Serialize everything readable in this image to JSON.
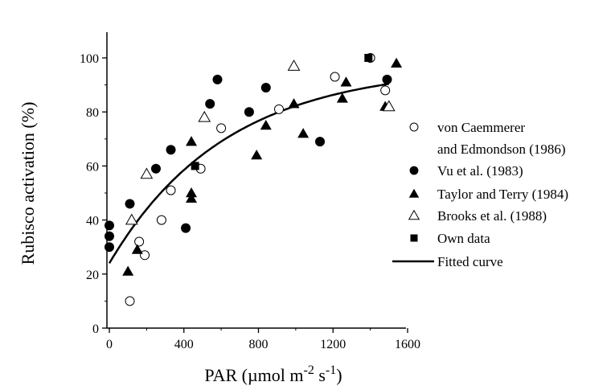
{
  "chart_data": {
    "type": "scatter",
    "xlabel": "PAR (µmol m-2 s-1)",
    "xlabel_parts": {
      "base": "PAR (µmol m",
      "exp1": "-2",
      "mid": " s",
      "exp2": "-1",
      "end": ")"
    },
    "ylabel": "Rubisco activation (%)",
    "xlim": [
      0,
      1600
    ],
    "ylim": [
      0,
      100
    ],
    "x_ticks": [
      "0",
      "400",
      "800",
      "1200",
      "1600"
    ],
    "y_ticks": [
      "0",
      "20",
      "40",
      "60",
      "80",
      "100"
    ],
    "grid": false,
    "legend_position": "right",
    "series": [
      {
        "name": "von Caemmerer and Edmondson (1986)",
        "legend_lines": [
          "von Caemmerer",
          "and Edmondson (1986)"
        ],
        "marker": "circle-open",
        "points": [
          [
            110,
            10
          ],
          [
            160,
            32
          ],
          [
            190,
            27
          ],
          [
            280,
            40
          ],
          [
            330,
            51
          ],
          [
            490,
            59
          ],
          [
            600,
            74
          ],
          [
            910,
            81
          ],
          [
            1210,
            93
          ],
          [
            1400,
            100
          ],
          [
            1480,
            88
          ]
        ]
      },
      {
        "name": "Vu et al. (1983)",
        "marker": "circle-filled",
        "points": [
          [
            0,
            38
          ],
          [
            0,
            34
          ],
          [
            0,
            30
          ],
          [
            110,
            46
          ],
          [
            250,
            59
          ],
          [
            330,
            66
          ],
          [
            410,
            37
          ],
          [
            540,
            83
          ],
          [
            580,
            92
          ],
          [
            750,
            80
          ],
          [
            840,
            89
          ],
          [
            1130,
            69
          ],
          [
            1490,
            92
          ]
        ]
      },
      {
        "name": "Taylor and Terry (1984)",
        "marker": "triangle-filled",
        "points": [
          [
            100,
            21
          ],
          [
            150,
            29
          ],
          [
            440,
            69
          ],
          [
            440,
            50
          ],
          [
            440,
            48
          ],
          [
            790,
            64
          ],
          [
            840,
            75
          ],
          [
            990,
            83
          ],
          [
            1040,
            72
          ],
          [
            1250,
            85
          ],
          [
            1270,
            91
          ],
          [
            1480,
            82
          ],
          [
            1540,
            98
          ]
        ]
      },
      {
        "name": "Brooks et al. (1988)",
        "marker": "triangle-open",
        "points": [
          [
            120,
            40
          ],
          [
            200,
            57
          ],
          [
            510,
            78
          ],
          [
            990,
            97
          ],
          [
            1500,
            82
          ]
        ]
      },
      {
        "name": "Own data",
        "marker": "square-filled",
        "points": [
          [
            460,
            60
          ],
          [
            1390,
            100
          ]
        ]
      },
      {
        "name": "Fitted curve",
        "marker": "line",
        "curve": {
          "ymax": 97,
          "y0": 24,
          "k": 0.0016
        }
      }
    ]
  }
}
